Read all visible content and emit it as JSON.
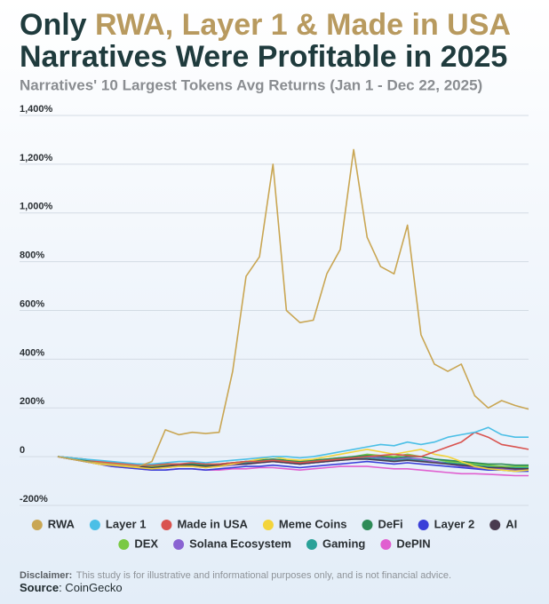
{
  "chart_data": {
    "type": "line",
    "title": [
      "Only",
      "RWA, Layer 1 & Made in USA",
      "Narratives Were Profitable in 2025"
    ],
    "subtitle": "Narratives' 10 Largest Tokens Avg Returns (Jan 1 - Dec 22, 2025)",
    "ylim": [
      -200,
      1400
    ],
    "yticks": [
      {
        "value": 1400,
        "label": "1,400%"
      },
      {
        "value": 1200,
        "label": "1,200%"
      },
      {
        "value": 1000,
        "label": "1,000%"
      },
      {
        "value": 800,
        "label": "800%"
      },
      {
        "value": 600,
        "label": "600%"
      },
      {
        "value": 400,
        "label": "400%"
      },
      {
        "value": 200,
        "label": "200%"
      },
      0,
      {
        "value": -200,
        "label": "-200%"
      }
    ],
    "grid": true,
    "series": [
      {
        "name": "RWA",
        "color": "#c9a653",
        "values": [
          0,
          -10,
          -20,
          -25,
          -30,
          -35,
          -40,
          -20,
          110,
          90,
          100,
          95,
          100,
          350,
          740,
          820,
          1200,
          600,
          550,
          560,
          750,
          850,
          1260,
          900,
          780,
          750,
          950,
          500,
          380,
          350,
          380,
          250,
          200,
          230,
          210,
          195
        ]
      },
      {
        "name": "Layer 1",
        "color": "#4bbfe6",
        "values": [
          0,
          -5,
          -10,
          -15,
          -20,
          -25,
          -30,
          -30,
          -25,
          -20,
          -20,
          -25,
          -20,
          -15,
          -10,
          -5,
          0,
          0,
          -5,
          0,
          10,
          20,
          30,
          40,
          50,
          45,
          60,
          50,
          60,
          80,
          90,
          100,
          120,
          90,
          80,
          80
        ]
      },
      {
        "name": "Made in USA",
        "color": "#d9534f",
        "values": [
          0,
          -5,
          -10,
          -20,
          -25,
          -30,
          -35,
          -35,
          -30,
          -30,
          -25,
          -30,
          -30,
          -25,
          -20,
          -20,
          -15,
          -20,
          -25,
          -20,
          -15,
          -10,
          -5,
          0,
          5,
          10,
          5,
          0,
          20,
          40,
          60,
          100,
          80,
          50,
          40,
          30
        ]
      },
      {
        "name": "Meme Coins",
        "color": "#f3d43b",
        "values": [
          0,
          -10,
          -20,
          -30,
          -35,
          -40,
          -45,
          -50,
          -45,
          -40,
          -40,
          -45,
          -40,
          -30,
          -20,
          -10,
          0,
          -10,
          -15,
          -10,
          0,
          10,
          20,
          30,
          20,
          10,
          20,
          30,
          10,
          0,
          -20,
          -40,
          -50,
          -55,
          -60,
          -55
        ]
      },
      {
        "name": "DeFi",
        "color": "#2e8b57",
        "values": [
          0,
          -5,
          -15,
          -20,
          -25,
          -30,
          -30,
          -35,
          -30,
          -30,
          -30,
          -35,
          -30,
          -25,
          -20,
          -15,
          -10,
          -15,
          -20,
          -15,
          -10,
          -5,
          0,
          5,
          0,
          -5,
          0,
          0,
          -10,
          -15,
          -20,
          -25,
          -30,
          -30,
          -35,
          -35
        ]
      },
      {
        "name": "Layer 2",
        "color": "#3a3fd8",
        "values": [
          0,
          -10,
          -20,
          -30,
          -40,
          -45,
          -50,
          -55,
          -55,
          -50,
          -50,
          -55,
          -50,
          -45,
          -40,
          -40,
          -35,
          -40,
          -45,
          -40,
          -35,
          -30,
          -25,
          -20,
          -25,
          -30,
          -25,
          -30,
          -35,
          -40,
          -45,
          -50,
          -55,
          -55,
          -60,
          -60
        ]
      },
      {
        "name": "AI",
        "color": "#4a3a4f",
        "values": [
          0,
          -10,
          -15,
          -25,
          -30,
          -35,
          -40,
          -45,
          -40,
          -35,
          -35,
          -40,
          -35,
          -30,
          -30,
          -25,
          -20,
          -25,
          -30,
          -25,
          -20,
          -15,
          -10,
          -10,
          -15,
          -20,
          -15,
          -20,
          -25,
          -30,
          -35,
          -40,
          -45,
          -45,
          -50,
          -50
        ]
      },
      {
        "name": "DEX",
        "color": "#7ac943",
        "values": [
          0,
          -5,
          -10,
          -20,
          -25,
          -30,
          -35,
          -40,
          -35,
          -30,
          -30,
          -35,
          -30,
          -25,
          -20,
          -15,
          -10,
          -15,
          -20,
          -15,
          -10,
          -5,
          0,
          10,
          5,
          0,
          10,
          0,
          -10,
          -20,
          -25,
          -30,
          -35,
          -40,
          -40,
          -40
        ]
      },
      {
        "name": "Solana Ecosystem",
        "color": "#8a63d2",
        "values": [
          0,
          -10,
          -20,
          -30,
          -35,
          -40,
          -45,
          -50,
          -45,
          -40,
          -40,
          -45,
          -40,
          -35,
          -30,
          -25,
          -20,
          -25,
          -30,
          -25,
          -20,
          -10,
          -5,
          0,
          -5,
          -10,
          -5,
          -10,
          -20,
          -30,
          -40,
          -45,
          -50,
          -50,
          -55,
          -55
        ]
      },
      {
        "name": "Gaming",
        "color": "#2aa198",
        "values": [
          0,
          -5,
          -15,
          -25,
          -30,
          -35,
          -40,
          -40,
          -35,
          -35,
          -35,
          -40,
          -35,
          -30,
          -25,
          -20,
          -20,
          -25,
          -30,
          -25,
          -20,
          -15,
          -10,
          -5,
          -10,
          -15,
          -10,
          -15,
          -20,
          -25,
          -30,
          -35,
          -40,
          -40,
          -45,
          -45
        ]
      },
      {
        "name": "DePIN",
        "color": "#e05fd0",
        "values": [
          0,
          -10,
          -20,
          -30,
          -40,
          -45,
          -50,
          -55,
          -55,
          -50,
          -50,
          -55,
          -55,
          -50,
          -50,
          -45,
          -45,
          -50,
          -55,
          -50,
          -45,
          -40,
          -40,
          -40,
          -45,
          -50,
          -50,
          -55,
          -60,
          -65,
          -70,
          -70,
          -72,
          -75,
          -78,
          -78
        ]
      }
    ],
    "disclaimer": {
      "label": "Disclaimer:",
      "text": "This study is for illustrative and informational purposes only, and is not financial advice."
    },
    "source": {
      "label": "Source",
      "text": ": CoinGecko"
    }
  }
}
